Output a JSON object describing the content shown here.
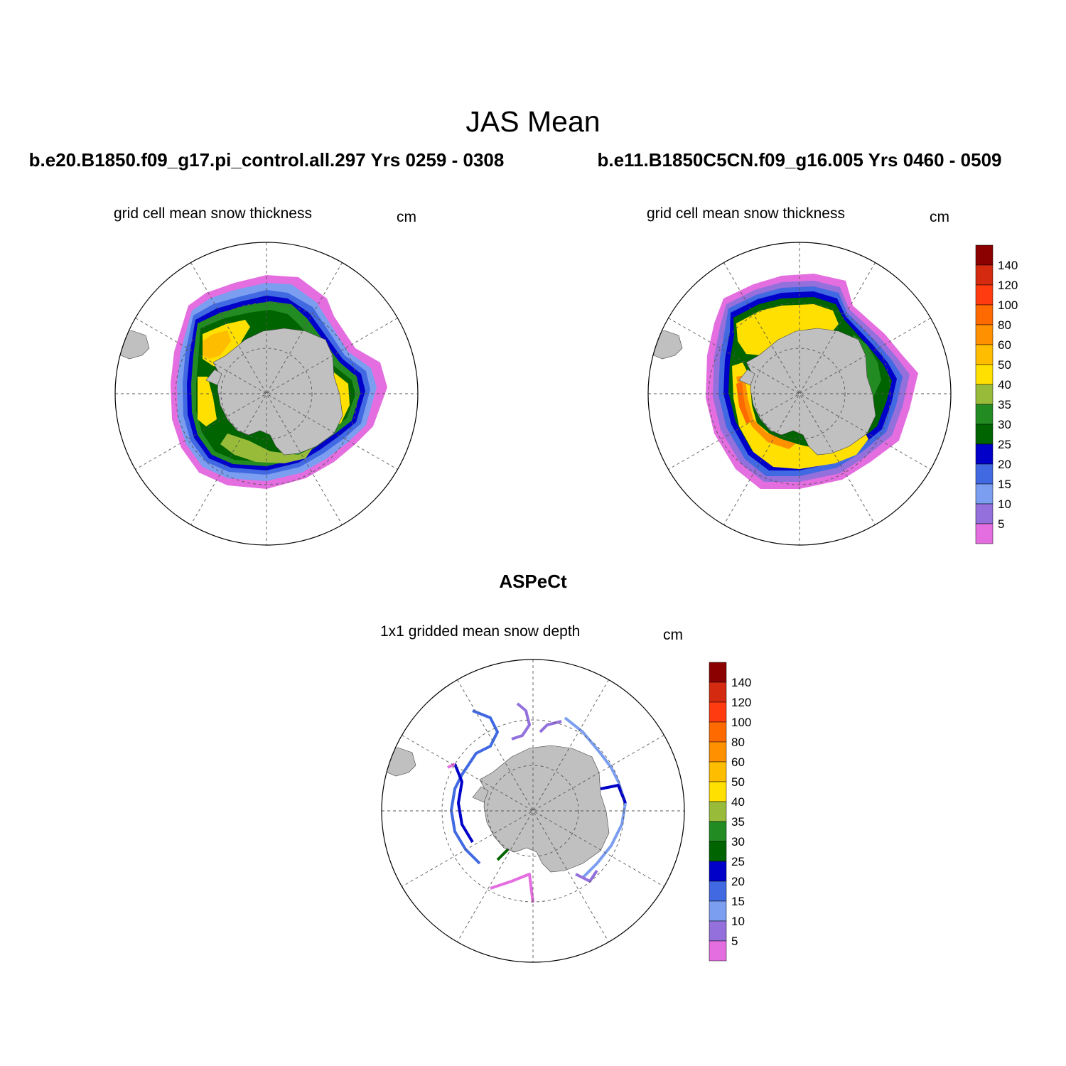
{
  "figure": {
    "title": "JAS Mean",
    "panels": [
      {
        "case": "b.e20.B1850.f09_g17.pi_control.all.297  Yrs 0259 - 0308",
        "var_label": "grid cell mean snow thickness",
        "units": "cm"
      },
      {
        "case": "b.e11.B1850C5CN.f09_g16.005  Yrs 0460 - 0509",
        "var_label": "grid cell mean snow thickness",
        "units": "cm"
      },
      {
        "case": "ASPeCt",
        "var_label": "1x1 gridded mean snow depth",
        "units": "cm"
      }
    ],
    "colorbar": {
      "labels": [
        "140",
        "120",
        "100",
        "80",
        "60",
        "50",
        "40",
        "35",
        "30",
        "25",
        "20",
        "15",
        "10",
        "5"
      ],
      "colors": [
        "#8b0000",
        "#d42a10",
        "#ff3b0f",
        "#ff6a00",
        "#ff9100",
        "#ffbd00",
        "#ffe000",
        "#98bc3a",
        "#228b22",
        "#006400",
        "#0000c8",
        "#4169e1",
        "#7b9ef0",
        "#9370db",
        "#e46ee0"
      ]
    },
    "land_color": "#c0c0c0"
  }
}
